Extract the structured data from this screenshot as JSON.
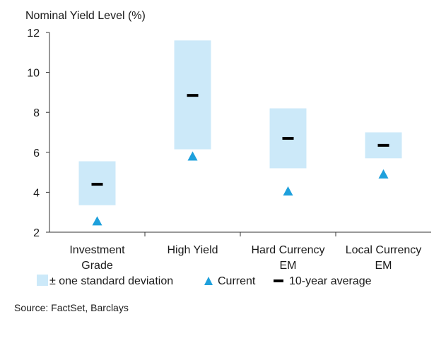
{
  "chart_data": {
    "type": "range-marker",
    "ylabel": "Nominal Yield Level (%)",
    "ylim": [
      2,
      12
    ],
    "yticks": [
      2,
      4,
      6,
      8,
      10,
      12
    ],
    "categories": [
      [
        "Investment",
        "Grade"
      ],
      [
        "High Yield"
      ],
      [
        "Hard Currency",
        "EM"
      ],
      [
        "Local Currency",
        "EM"
      ]
    ],
    "series": [
      {
        "name": "± one standard deviation",
        "type": "range",
        "low": [
          3.35,
          6.15,
          5.2,
          5.7
        ],
        "high": [
          5.55,
          11.6,
          8.2,
          7.0
        ],
        "color": "#cce9f9"
      },
      {
        "name": "Current",
        "type": "marker",
        "shape": "triangle",
        "values": [
          2.55,
          5.8,
          4.05,
          4.9
        ],
        "color": "#1ea0dc"
      },
      {
        "name": "10-year average",
        "type": "marker",
        "shape": "dash",
        "values": [
          4.4,
          8.85,
          6.7,
          6.35
        ],
        "color": "#000000"
      }
    ],
    "legend_position": "bottom",
    "grid": false
  },
  "source": "Source: FactSet, Barclays"
}
